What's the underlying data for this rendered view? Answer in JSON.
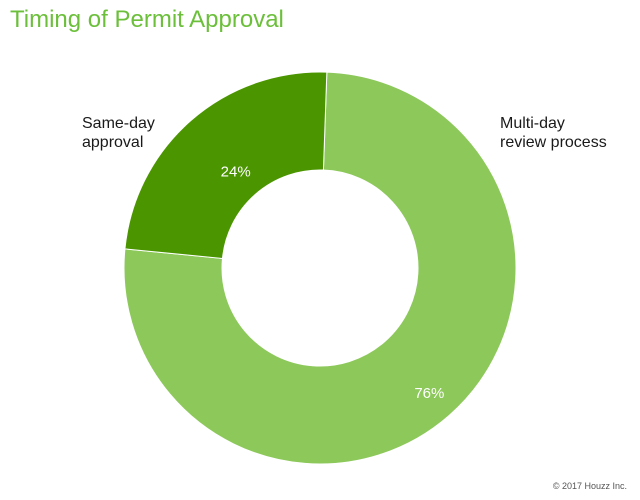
{
  "chart_data": {
    "type": "pie",
    "title": "Timing of Permit Approval",
    "donut": true,
    "slices": [
      {
        "label_lines": [
          "Multi-day",
          "review process"
        ],
        "value": 76,
        "value_label": "76%",
        "color": "#8cc85a",
        "value_label_color": "#ffffff"
      },
      {
        "label_lines": [
          "Same-day",
          "approval"
        ],
        "value": 24,
        "value_label": "24%",
        "color": "#4a9500",
        "value_label_color": "#ffffff"
      }
    ],
    "legend": "none",
    "grid": false
  },
  "footer": {
    "copyright": "© 2017 Houzz Inc."
  },
  "colors": {
    "title": "#6bbf3a",
    "background": "#ffffff"
  }
}
